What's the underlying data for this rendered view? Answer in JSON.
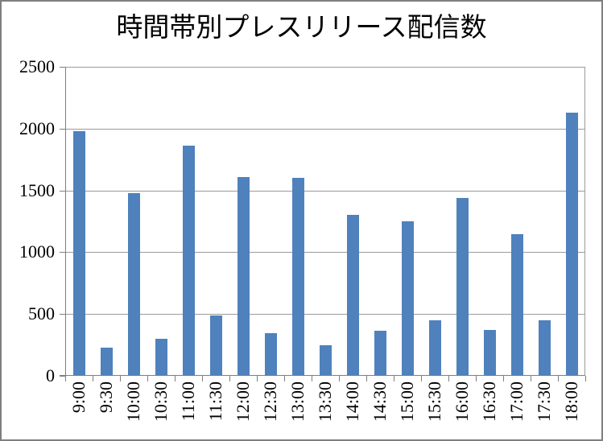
{
  "chart_data": {
    "type": "bar",
    "title": "時間帯別プレスリリース配信数",
    "categories": [
      "9:00",
      "9:30",
      "10:00",
      "10:30",
      "11:00",
      "11:30",
      "12:00",
      "12:30",
      "13:00",
      "13:30",
      "14:00",
      "14:30",
      "15:00",
      "15:30",
      "16:00",
      "16:30",
      "17:00",
      "17:30",
      "18:00"
    ],
    "values": [
      1980,
      230,
      1480,
      300,
      1860,
      490,
      1610,
      345,
      1600,
      250,
      1300,
      365,
      1250,
      450,
      1440,
      370,
      1145,
      450,
      2130
    ],
    "ylim": [
      0,
      2500
    ],
    "ytick_values": [
      0,
      500,
      1000,
      1500,
      2000,
      2500
    ],
    "ytick_labels": [
      "0",
      "500",
      "1000",
      "1500",
      "2000",
      "2500"
    ],
    "xlabel": "",
    "ylabel": "",
    "grid": "horizontal",
    "legend": "none",
    "colors": {
      "bar": "#4F81BD",
      "gridline": "#9a9a9a",
      "axis": "#7f7f7f",
      "frame_border": "#7f7f7f",
      "background": "#ffffff",
      "text": "#000000"
    }
  }
}
